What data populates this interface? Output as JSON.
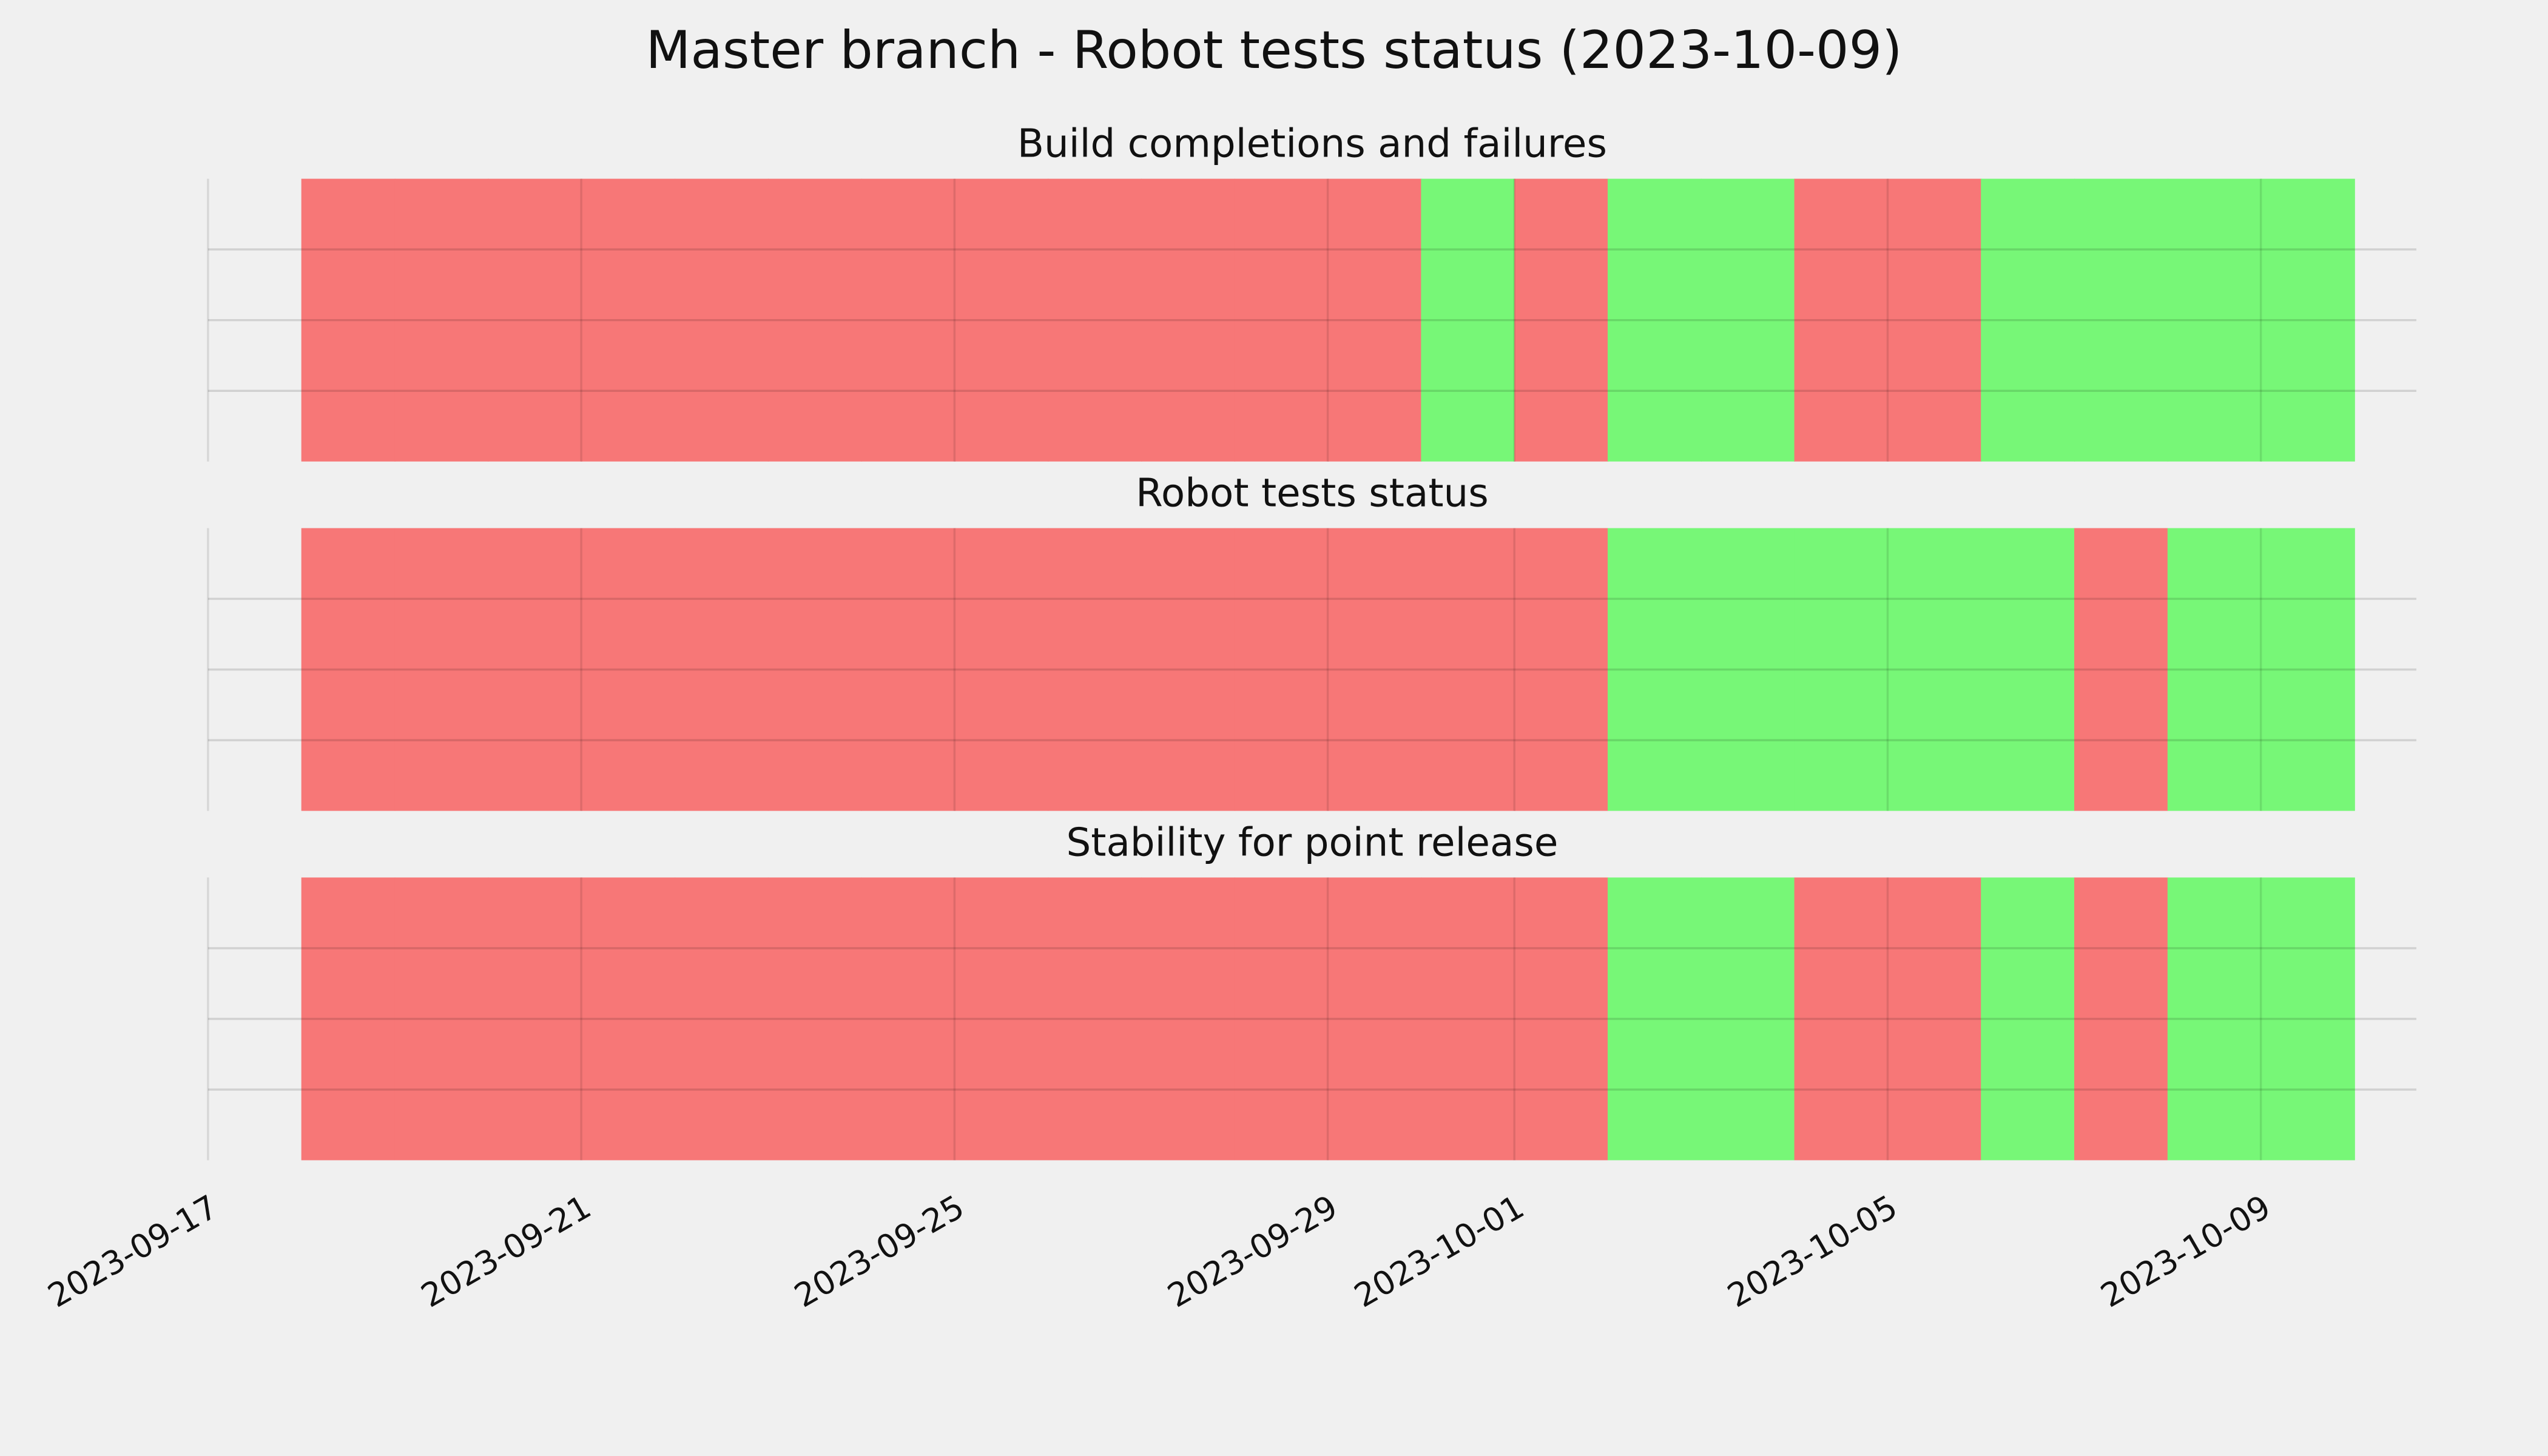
{
  "title": "Master branch - Robot tests status (2023-10-09)",
  "chart_data": [
    {
      "type": "timeline",
      "title": "Build completions and failures",
      "x": [
        "2023-09-18",
        "2023-09-19",
        "2023-09-20",
        "2023-09-21",
        "2023-09-22",
        "2023-09-23",
        "2023-09-24",
        "2023-09-25",
        "2023-09-26",
        "2023-09-27",
        "2023-09-28",
        "2023-09-29",
        "2023-09-30",
        "2023-10-01",
        "2023-10-02",
        "2023-10-03",
        "2023-10-04",
        "2023-10-05",
        "2023-10-06",
        "2023-10-07",
        "2023-10-08",
        "2023-10-09"
      ],
      "values": [
        0,
        0,
        0,
        0,
        0,
        0,
        0,
        0,
        0,
        0,
        0,
        0,
        1,
        0,
        1,
        1,
        0,
        0,
        1,
        1,
        1,
        1
      ],
      "colors": [
        "#f77777",
        "#77f777"
      ],
      "xlim": [
        "2023-09-17",
        "2023-10-10T16:00"
      ],
      "xticks": [
        "2023-09-17",
        "2023-09-21",
        "2023-09-25",
        "2023-09-29",
        "2023-10-01",
        "2023-10-05",
        "2023-10-09"
      ],
      "ylim": [
        0,
        1
      ],
      "yticks": [
        0.25,
        0.5,
        0.75
      ],
      "grid": true
    },
    {
      "type": "timeline",
      "title": "Robot tests status",
      "x": [
        "2023-09-18",
        "2023-09-19",
        "2023-09-20",
        "2023-09-21",
        "2023-09-22",
        "2023-09-23",
        "2023-09-24",
        "2023-09-25",
        "2023-09-26",
        "2023-09-27",
        "2023-09-28",
        "2023-09-29",
        "2023-09-30",
        "2023-10-01",
        "2023-10-02",
        "2023-10-03",
        "2023-10-04",
        "2023-10-05",
        "2023-10-06",
        "2023-10-07",
        "2023-10-08",
        "2023-10-09"
      ],
      "values": [
        0,
        0,
        0,
        0,
        0,
        0,
        0,
        0,
        0,
        0,
        0,
        0,
        0,
        0,
        1,
        1,
        1,
        1,
        1,
        0,
        1,
        1
      ],
      "colors": [
        "#f77777",
        "#77f777"
      ],
      "xlim": [
        "2023-09-17",
        "2023-10-10T16:00"
      ],
      "xticks": [
        "2023-09-17",
        "2023-09-21",
        "2023-09-25",
        "2023-09-29",
        "2023-10-01",
        "2023-10-05",
        "2023-10-09"
      ],
      "ylim": [
        0,
        1
      ],
      "yticks": [
        0.25,
        0.5,
        0.75
      ],
      "grid": true
    },
    {
      "type": "timeline",
      "title": "Stability for point release",
      "x": [
        "2023-09-18",
        "2023-09-19",
        "2023-09-20",
        "2023-09-21",
        "2023-09-22",
        "2023-09-23",
        "2023-09-24",
        "2023-09-25",
        "2023-09-26",
        "2023-09-27",
        "2023-09-28",
        "2023-09-29",
        "2023-09-30",
        "2023-10-01",
        "2023-10-02",
        "2023-10-03",
        "2023-10-04",
        "2023-10-05",
        "2023-10-06",
        "2023-10-07",
        "2023-10-08",
        "2023-10-09"
      ],
      "values": [
        0,
        0,
        0,
        0,
        0,
        0,
        0,
        0,
        0,
        0,
        0,
        0,
        0,
        0,
        1,
        1,
        0,
        0,
        1,
        0,
        1,
        1
      ],
      "colors": [
        "#f77777",
        "#77f777"
      ],
      "xlim": [
        "2023-09-17",
        "2023-10-10T16:00"
      ],
      "xticks": [
        "2023-09-17",
        "2023-09-21",
        "2023-09-25",
        "2023-09-29",
        "2023-10-01",
        "2023-10-05",
        "2023-10-09"
      ],
      "ylim": [
        0,
        1
      ],
      "yticks": [
        0.25,
        0.5,
        0.75
      ],
      "grid": true,
      "tick_labels": true
    }
  ]
}
